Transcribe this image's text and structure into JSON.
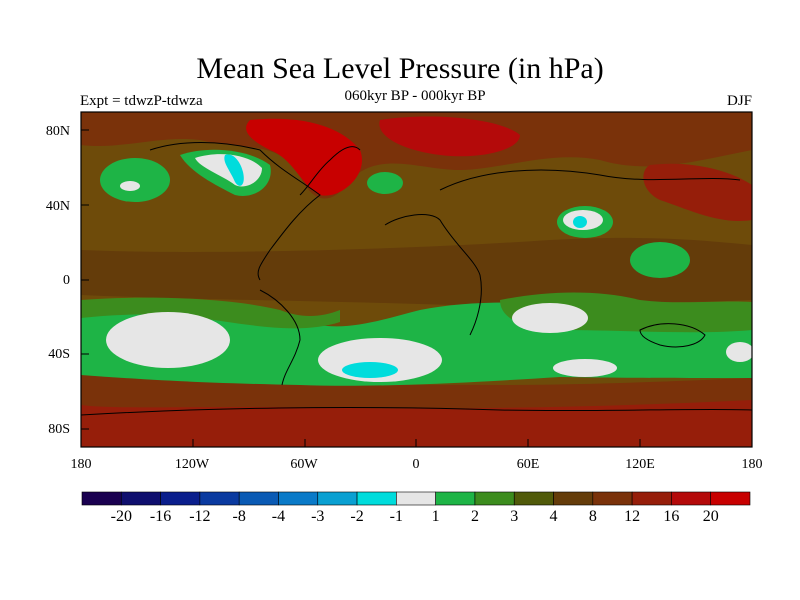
{
  "title": "Mean Sea Level Pressure (in hPa)",
  "subtitle": "060kyr BP - 000kyr BP",
  "expt": "Expt = tdwzP-tdwza",
  "season": "DJF",
  "lat_labels": [
    "80N",
    "40N",
    "0",
    "40S",
    "80S"
  ],
  "lon_labels": [
    "180",
    "120W",
    "60W",
    "0",
    "60E",
    "120E",
    "180"
  ],
  "colorbar": {
    "labels": [
      "-20",
      "-16",
      "-12",
      "-8",
      "-4",
      "-3",
      "-2",
      "-1",
      "1",
      "2",
      "3",
      "4",
      "8",
      "12",
      "16",
      "20"
    ],
    "colors": [
      "#1a0050",
      "#0f0f6e",
      "#0a1e8c",
      "#0a3aa0",
      "#0a5ab4",
      "#0a7ac8",
      "#0aa0d2",
      "#00dcdc",
      "#e6e6e6",
      "#1eb446",
      "#3c8c1e",
      "#505a0a",
      "#643c0a",
      "#7a320a",
      "#961e0a",
      "#b40a0a",
      "#c80000"
    ]
  },
  "colors": {
    "ocean_bg": "#6e4b0a",
    "land": "#5a5a0a",
    "positive_high": "#b40a0a",
    "negative_low": "#00dcdc",
    "near_zero": "#e6e6e6",
    "green": "#1eb446"
  }
}
